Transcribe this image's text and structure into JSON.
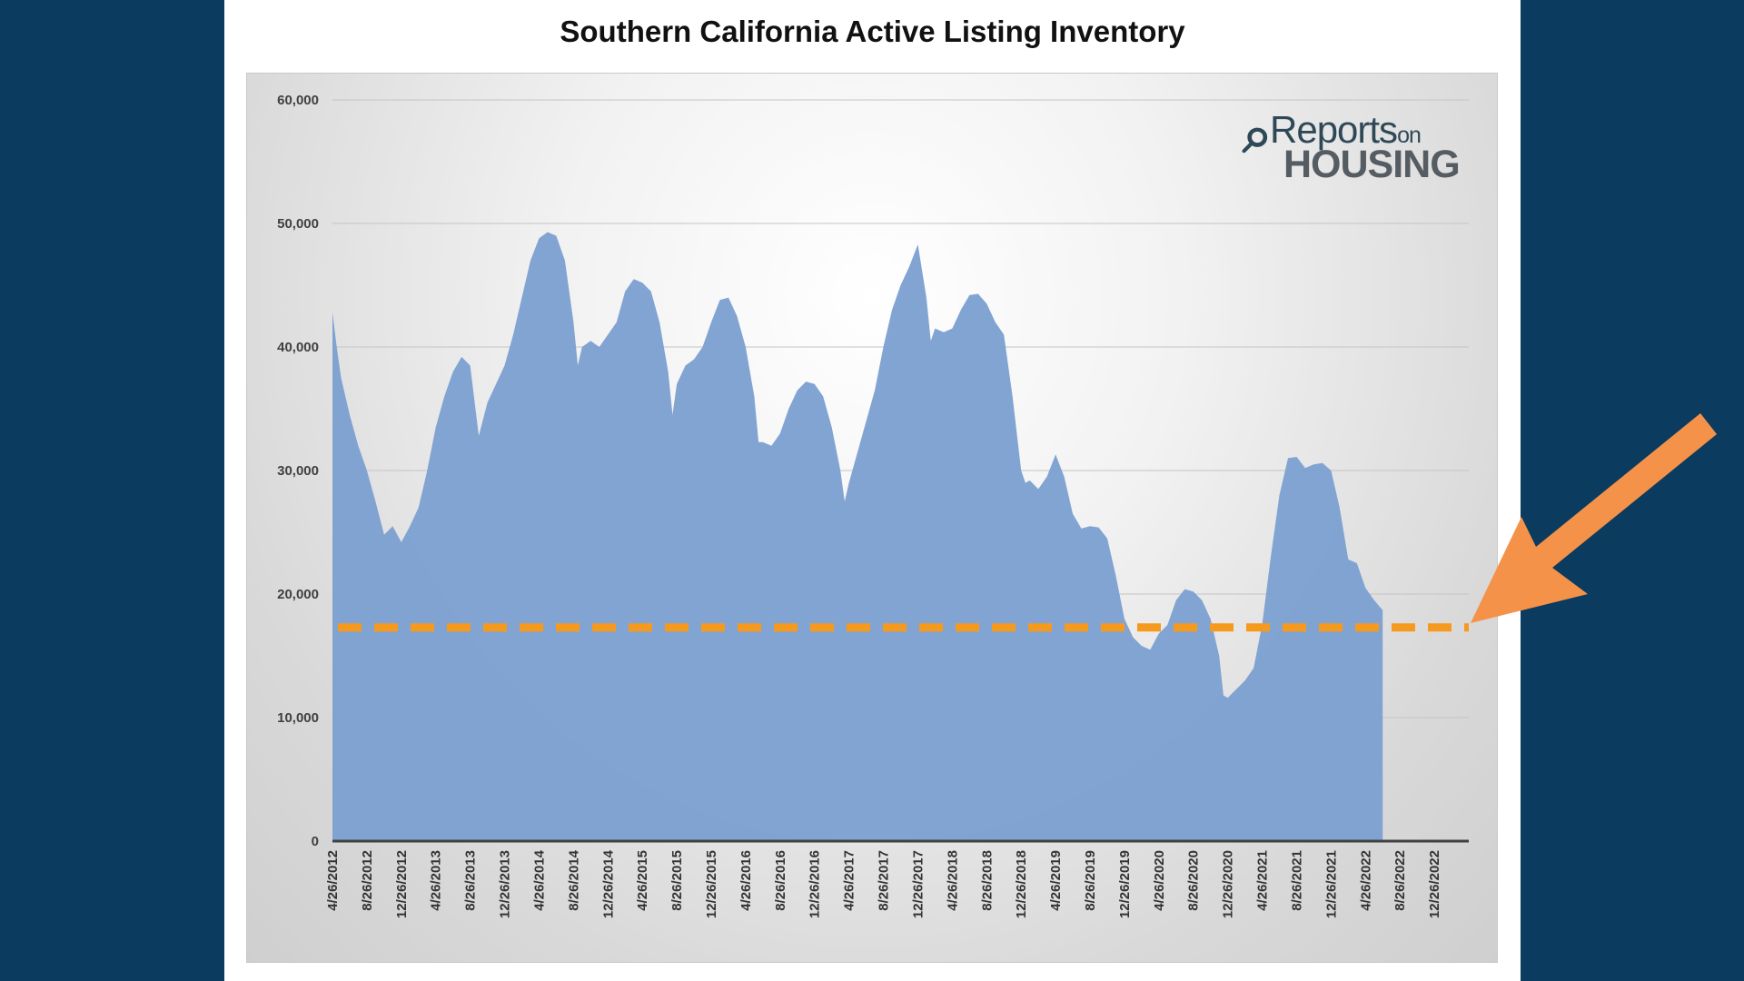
{
  "slide": {
    "title": "Southern California Active Listing Inventory",
    "logo": {
      "text_main": "Reports",
      "text_on": "on",
      "text_sub": "HOUSING"
    }
  },
  "colors": {
    "background": "#0b3b5e",
    "area_fill": "#7da1d1",
    "threshold_line": "#f59a1e",
    "arrow": "#f5924a"
  },
  "chart_data": {
    "type": "area",
    "title": "Southern California Active Listing Inventory",
    "xlabel": "",
    "ylabel": "",
    "ylim": [
      0,
      60000
    ],
    "yticks": [
      0,
      10000,
      20000,
      30000,
      40000,
      50000,
      60000
    ],
    "ytick_labels": [
      "0",
      "10,000",
      "20,000",
      "30,000",
      "40,000",
      "50,000",
      "60,000"
    ],
    "grid": true,
    "x_tick_labels": [
      "4/26/2012",
      "8/26/2012",
      "12/26/2012",
      "4/26/2013",
      "8/26/2013",
      "12/26/2013",
      "4/26/2014",
      "8/26/2014",
      "12/26/2014",
      "4/26/2015",
      "8/26/2015",
      "12/26/2015",
      "4/26/2016",
      "8/26/2016",
      "12/26/2016",
      "4/26/2017",
      "8/26/2017",
      "12/26/2017",
      "4/26/2018",
      "8/26/2018",
      "12/26/2018",
      "4/26/2019",
      "8/26/2019",
      "12/26/2019",
      "4/26/2020",
      "8/26/2020",
      "12/26/2020",
      "4/26/2021",
      "8/26/2021",
      "12/26/2021",
      "4/26/2022",
      "8/26/2022",
      "12/26/2022"
    ],
    "x_period_months": 132,
    "series": [
      {
        "name": "Active Listing Inventory",
        "points": [
          [
            0,
            42800
          ],
          [
            0.5,
            40000
          ],
          [
            1,
            37500
          ],
          [
            2,
            34500
          ],
          [
            3,
            32000
          ],
          [
            4,
            30000
          ],
          [
            5,
            27500
          ],
          [
            6,
            24800
          ],
          [
            7,
            25500
          ],
          [
            8,
            24200
          ],
          [
            9,
            25500
          ],
          [
            10,
            27000
          ],
          [
            11,
            30000
          ],
          [
            12,
            33500
          ],
          [
            13,
            36000
          ],
          [
            14,
            38000
          ],
          [
            15,
            39200
          ],
          [
            16,
            38500
          ],
          [
            17,
            32800
          ],
          [
            18,
            35500
          ],
          [
            19,
            37000
          ],
          [
            20,
            38500
          ],
          [
            21,
            41000
          ],
          [
            22,
            44000
          ],
          [
            23,
            47000
          ],
          [
            24,
            48800
          ],
          [
            25,
            49300
          ],
          [
            26,
            49000
          ],
          [
            27,
            47000
          ],
          [
            28,
            42000
          ],
          [
            28.5,
            38500
          ],
          [
            29,
            40000
          ],
          [
            30,
            40500
          ],
          [
            31,
            40000
          ],
          [
            32,
            41000
          ],
          [
            33,
            42000
          ],
          [
            34,
            44500
          ],
          [
            35,
            45500
          ],
          [
            36,
            45200
          ],
          [
            37,
            44500
          ],
          [
            38,
            42000
          ],
          [
            39,
            38000
          ],
          [
            39.5,
            34500
          ],
          [
            40,
            37000
          ],
          [
            41,
            38500
          ],
          [
            42,
            39000
          ],
          [
            43,
            40000
          ],
          [
            44,
            42000
          ],
          [
            45,
            43800
          ],
          [
            46,
            44000
          ],
          [
            47,
            42500
          ],
          [
            48,
            40000
          ],
          [
            49,
            36000
          ],
          [
            49.5,
            32300
          ],
          [
            50,
            32300
          ],
          [
            51,
            32000
          ],
          [
            52,
            33000
          ],
          [
            53,
            35000
          ],
          [
            54,
            36500
          ],
          [
            55,
            37200
          ],
          [
            56,
            37000
          ],
          [
            57,
            36000
          ],
          [
            58,
            33500
          ],
          [
            59,
            30000
          ],
          [
            59.5,
            27500
          ],
          [
            60,
            29000
          ],
          [
            61,
            31500
          ],
          [
            62,
            34000
          ],
          [
            63,
            36500
          ],
          [
            64,
            40000
          ],
          [
            65,
            43000
          ],
          [
            66,
            45000
          ],
          [
            67,
            46500
          ],
          [
            68,
            48300
          ],
          [
            69,
            44000
          ],
          [
            69.5,
            40500
          ],
          [
            70,
            41500
          ],
          [
            71,
            41200
          ],
          [
            72,
            41500
          ],
          [
            73,
            43000
          ],
          [
            74,
            44200
          ],
          [
            75,
            44300
          ],
          [
            76,
            43500
          ],
          [
            77,
            42000
          ],
          [
            78,
            41000
          ],
          [
            79,
            36000
          ],
          [
            80,
            30000
          ],
          [
            80.5,
            29000
          ],
          [
            81,
            29200
          ],
          [
            82,
            28500
          ],
          [
            83,
            29500
          ],
          [
            84,
            31300
          ],
          [
            85,
            29500
          ],
          [
            86,
            26500
          ],
          [
            87,
            25300
          ],
          [
            88,
            25500
          ],
          [
            89,
            25400
          ],
          [
            90,
            24500
          ],
          [
            91,
            21500
          ],
          [
            92,
            18000
          ],
          [
            93,
            16500
          ],
          [
            94,
            15800
          ],
          [
            95,
            15500
          ],
          [
            96,
            16800
          ],
          [
            97,
            17500
          ],
          [
            98,
            19500
          ],
          [
            99,
            20400
          ],
          [
            100,
            20200
          ],
          [
            101,
            19500
          ],
          [
            102,
            18000
          ],
          [
            103,
            15000
          ],
          [
            103.5,
            11800
          ],
          [
            104,
            11600
          ],
          [
            105,
            12300
          ],
          [
            106,
            13000
          ],
          [
            107,
            14000
          ],
          [
            108,
            17500
          ],
          [
            109,
            23000
          ],
          [
            110,
            28000
          ],
          [
            111,
            31000
          ],
          [
            112,
            31100
          ],
          [
            113,
            30200
          ],
          [
            114,
            30500
          ],
          [
            115,
            30600
          ],
          [
            116,
            30000
          ],
          [
            117,
            27000
          ],
          [
            118,
            22800
          ],
          [
            119,
            22500
          ],
          [
            120,
            20500
          ],
          [
            121,
            19500
          ],
          [
            122,
            18700
          ]
        ]
      }
    ],
    "reference_line": {
      "value": 17300,
      "style": "dashed"
    },
    "annotations": [
      {
        "type": "arrow",
        "target": "end-of-series",
        "from": "top-right"
      }
    ]
  }
}
